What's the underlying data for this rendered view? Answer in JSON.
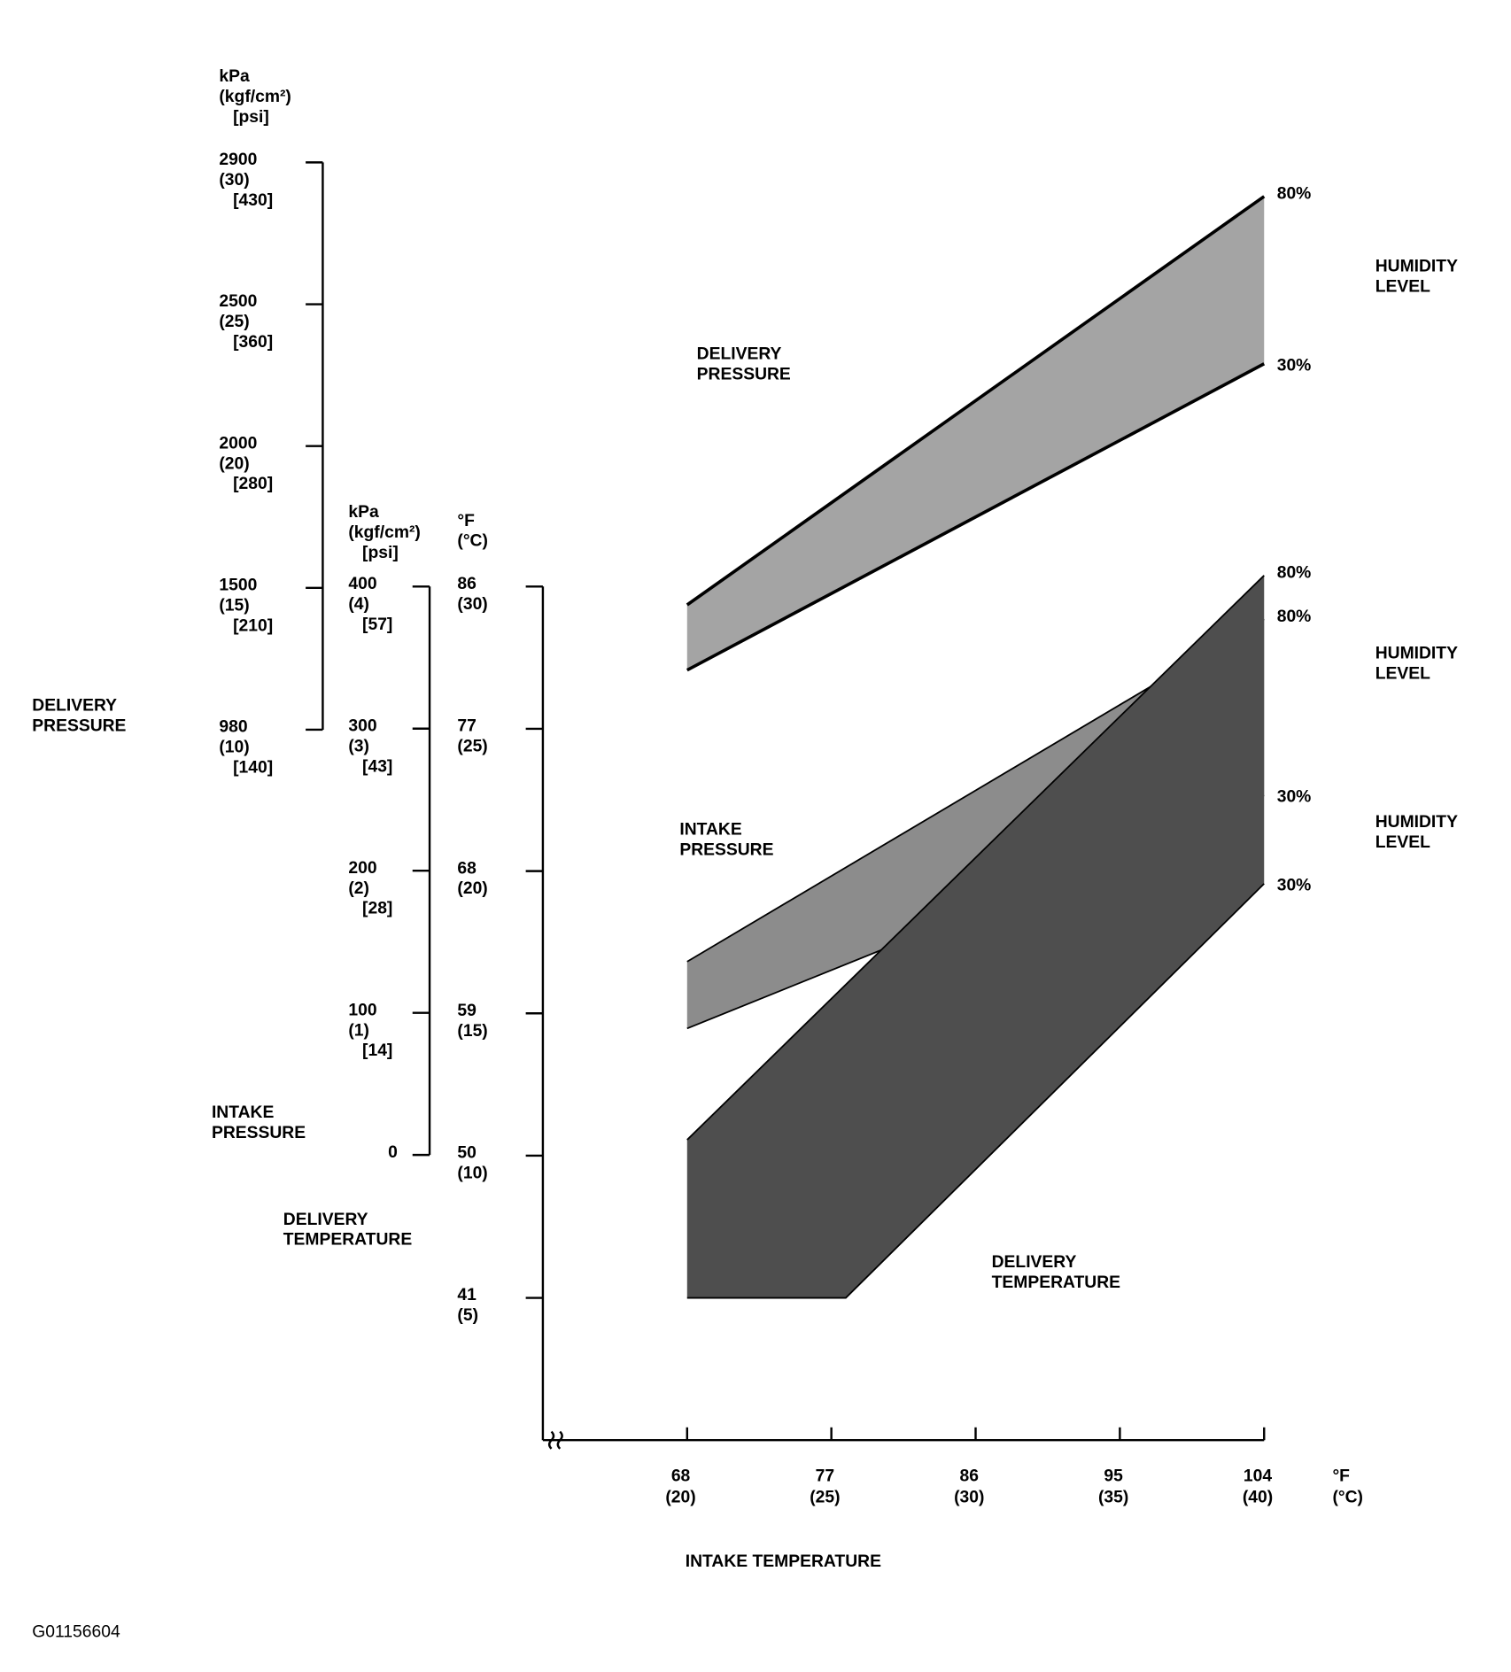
{
  "chart_data": {
    "type": "band",
    "x": {
      "title": "INTAKE TEMPERATURE",
      "unit": "°F",
      "unit2": "(°C)",
      "xlim": [
        59,
        104
      ],
      "xticks": [
        {
          "value": 68,
          "label": "68",
          "label2": "(20)"
        },
        {
          "value": 77,
          "label": "77",
          "label2": "(25)"
        },
        {
          "value": 86,
          "label": "86",
          "label2": "(30)"
        },
        {
          "value": 95,
          "label": "95",
          "label2": "(35)"
        },
        {
          "value": 104,
          "label": "104",
          "label2": "(40)"
        }
      ]
    },
    "y_axes": [
      {
        "title": [
          "DELIVERY",
          "PRESSURE"
        ],
        "units": [
          "kPa",
          "(kgf/cm²)",
          "[psi]"
        ],
        "ylim": [
          10,
          30
        ],
        "yticks": [
          {
            "value": 30,
            "kpa": "2900",
            "label": "(30)",
            "psi": "[430]"
          },
          {
            "value": 25,
            "kpa": "2500",
            "label": "(25)",
            "psi": "[360]"
          },
          {
            "value": 20,
            "kpa": "2000",
            "label": "(20)",
            "psi": "[280]"
          },
          {
            "value": 15,
            "kpa": "1500",
            "label": "(15)",
            "psi": "[210]"
          },
          {
            "value": 10,
            "kpa": "980",
            "label": "(10)",
            "psi": "[140]"
          }
        ]
      },
      {
        "title": [
          "INTAKE",
          "PRESSURE"
        ],
        "units": [
          "kPa",
          "(kgf/cm²)",
          "[psi]"
        ],
        "ylim": [
          0,
          4
        ],
        "yticks": [
          {
            "value": 4,
            "kpa": "400",
            "label": "(4)",
            "psi": "[57]"
          },
          {
            "value": 3,
            "kpa": "300",
            "label": "(3)",
            "psi": "[43]"
          },
          {
            "value": 2,
            "kpa": "200",
            "label": "(2)",
            "psi": "[28]"
          },
          {
            "value": 1,
            "kpa": "100",
            "label": "(1)",
            "psi": "[14]"
          },
          {
            "value": 0,
            "label": "0"
          }
        ]
      },
      {
        "title": [
          "DELIVERY",
          "TEMPERATURE"
        ],
        "units": [
          "°F",
          "(°C)"
        ],
        "ylim": [
          32,
          86
        ],
        "yticks": [
          {
            "value": 86,
            "label": "86",
            "label2": "(30)"
          },
          {
            "value": 77,
            "label": "77",
            "label2": "(25)"
          },
          {
            "value": 68,
            "label": "68",
            "label2": "(20)"
          },
          {
            "value": 59,
            "label": "59",
            "label2": "(15)"
          },
          {
            "value": 50,
            "label": "50",
            "label2": "(10)"
          },
          {
            "value": 41,
            "label": "41",
            "label2": "(5)"
          }
        ]
      }
    ],
    "bands": [
      {
        "name": [
          "DELIVERY",
          "PRESSURE"
        ],
        "axis": 0,
        "color": "#a4a4a4",
        "humidity": [
          "HUMIDITY",
          "LEVEL"
        ],
        "series": [
          {
            "name": "80%",
            "x": [
              68,
              104
            ],
            "values": [
              14.4,
              28.8
            ]
          },
          {
            "name": "30%",
            "x": [
              68,
              104
            ],
            "values": [
              12.1,
              22.9
            ]
          }
        ]
      },
      {
        "name": [
          "INTAKE",
          "PRESSURE"
        ],
        "axis": 1,
        "color": "#8c8c8c",
        "humidity": [
          "HUMIDITY",
          "LEVEL"
        ],
        "series": [
          {
            "name": "80%",
            "x": [
              68,
              104
            ],
            "values": [
              1.36,
              3.77
            ]
          },
          {
            "name": "30%",
            "x": [
              68,
              104
            ],
            "values": [
              0.89,
              2.53
            ]
          }
        ]
      },
      {
        "name": [
          "DELIVERY",
          "TEMPERATURE"
        ],
        "axis": 2,
        "color": "#4e4e4e",
        "humidity": [
          "HUMIDITY",
          "LEVEL"
        ],
        "series": [
          {
            "name": "80%",
            "x": [
              68,
              104
            ],
            "values": [
              51.0,
              86.7
            ]
          },
          {
            "name": "30%",
            "x": [
              68,
              77.9,
              104
            ],
            "values": [
              41,
              41,
              67.2
            ]
          }
        ]
      }
    ]
  },
  "figure_id": "G01156604"
}
